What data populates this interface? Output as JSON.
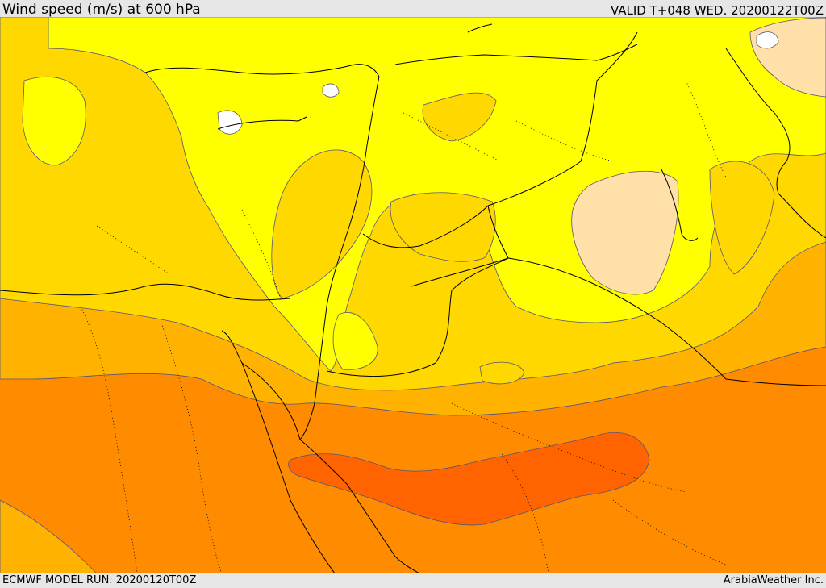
{
  "header": {
    "title": "Wind speed (m/s) at 600 hPa",
    "valid": "VALID T+048 WED. 20200122T00Z"
  },
  "footer": {
    "model_run": "ECMWF MODEL RUN: 20200120T00Z",
    "credit": "ArabiaWeather Inc."
  },
  "palette": {
    "band_10_15": "#ffe0a8",
    "band_15_20": "#ffff00",
    "band_20_25": "#ffd800",
    "band_25_30": "#ffb300",
    "band_30_35": "#ff8c00",
    "band_35_40": "#ff6400",
    "contour": "#555577",
    "coast": "#000000"
  }
}
